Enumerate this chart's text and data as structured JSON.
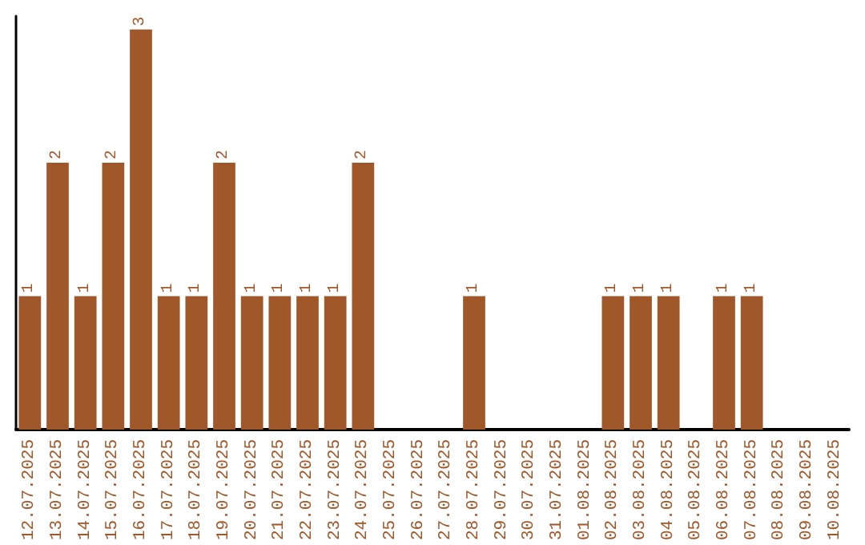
{
  "chart_data": {
    "type": "bar",
    "categories": [
      "12.07.2025",
      "13.07.2025",
      "14.07.2025",
      "15.07.2025",
      "16.07.2025",
      "17.07.2025",
      "18.07.2025",
      "19.07.2025",
      "20.07.2025",
      "21.07.2025",
      "22.07.2025",
      "23.07.2025",
      "24.07.2025",
      "25.07.2025",
      "26.07.2025",
      "27.07.2025",
      "28.07.2025",
      "29.07.2025",
      "30.07.2025",
      "31.07.2025",
      "01.08.2025",
      "02.08.2025",
      "03.08.2025",
      "04.08.2025",
      "05.08.2025",
      "06.08.2025",
      "07.08.2025",
      "08.08.2025",
      "09.08.2025",
      "10.08.2025"
    ],
    "values": [
      1,
      2,
      1,
      2,
      3,
      1,
      1,
      2,
      1,
      1,
      1,
      1,
      2,
      0,
      0,
      0,
      1,
      0,
      0,
      0,
      0,
      1,
      1,
      1,
      0,
      1,
      1,
      0,
      0,
      0
    ],
    "value_labels": [
      "1",
      "2",
      "1",
      "2",
      "3",
      "1",
      "1",
      "2",
      "1",
      "1",
      "1",
      "1",
      "2",
      null,
      null,
      null,
      "1",
      null,
      null,
      null,
      null,
      "1",
      "1",
      "1",
      null,
      "1",
      "1",
      null,
      null,
      null
    ],
    "color": "#a0572a",
    "ylim": [
      0,
      3.1
    ],
    "tick_labels": "x"
  }
}
